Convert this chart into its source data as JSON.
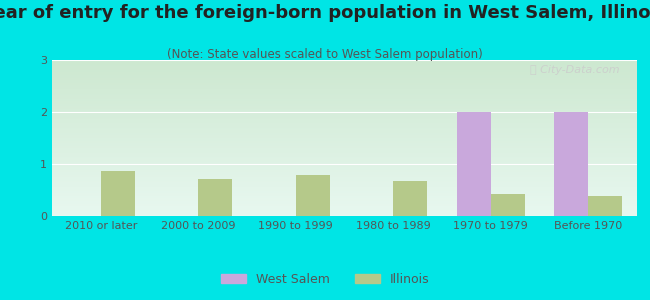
{
  "title": "Year of entry for the foreign-born population in West Salem, Illinois",
  "subtitle": "(Note: State values scaled to West Salem population)",
  "categories": [
    "2010 or later",
    "2000 to 2009",
    "1990 to 1999",
    "1980 to 1989",
    "1970 to 1979",
    "Before 1970"
  ],
  "west_salem": [
    0,
    0,
    0,
    0,
    2.0,
    2.0
  ],
  "illinois": [
    0.87,
    0.72,
    0.78,
    0.68,
    0.42,
    0.38
  ],
  "west_salem_color": "#c9a8dc",
  "illinois_color": "#b5c98a",
  "background_color": "#00e5e5",
  "ylim": [
    0,
    3
  ],
  "yticks": [
    0,
    1,
    2,
    3
  ],
  "bar_width": 0.35,
  "title_fontsize": 13,
  "subtitle_fontsize": 8.5,
  "tick_fontsize": 8,
  "legend_fontsize": 9
}
